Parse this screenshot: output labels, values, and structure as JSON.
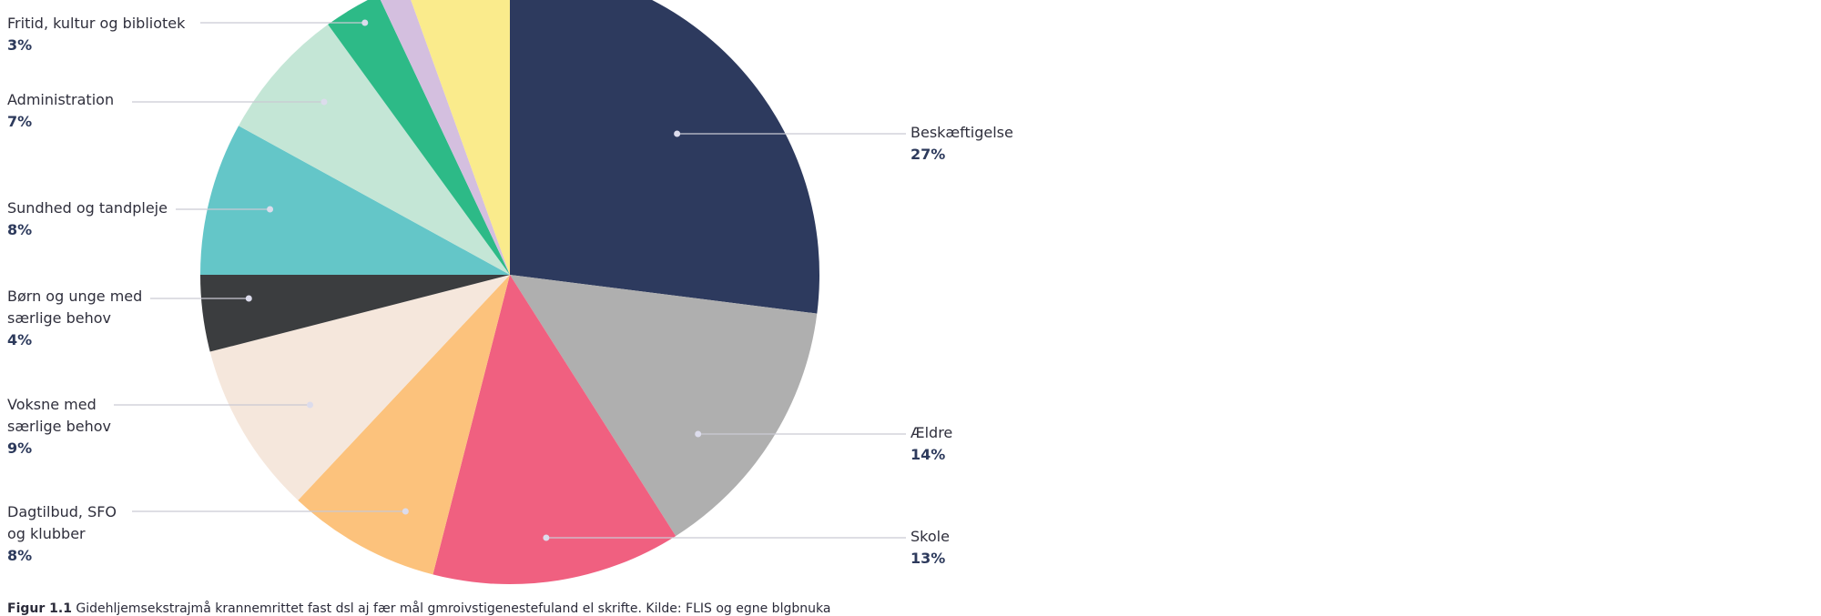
{
  "chart_data": {
    "type": "pie",
    "slices": [
      {
        "label": "Beskæftigelse",
        "value": 27,
        "pct_label": "27%",
        "color": "#2d3a5e"
      },
      {
        "label": "Ældre",
        "value": 14,
        "pct_label": "14%",
        "color": "#afafaf"
      },
      {
        "label": "Skole",
        "value": 13,
        "pct_label": "13%",
        "color": "#f06080"
      },
      {
        "label": "Dagtilbud, SFO og klubber",
        "value": 8,
        "pct_label": "8%",
        "color": "#fcc27c"
      },
      {
        "label": "Voksne med særlige behov",
        "value": 9,
        "pct_label": "9%",
        "color": "#f5e7dc"
      },
      {
        "label": "Børn og unge med særlige behov",
        "value": 4,
        "pct_label": "4%",
        "color": "#3b3d3f"
      },
      {
        "label": "Sundhed og tandpleje",
        "value": 8,
        "pct_label": "8%",
        "color": "#64c6c8"
      },
      {
        "label": "Administration",
        "value": 7,
        "pct_label": "7%",
        "color": "#c4e6d6"
      },
      {
        "label": "Fritid, kultur og bibliotek",
        "value": 3,
        "pct_label": "3%",
        "color": "#2dba87"
      },
      {
        "label": "",
        "value": 1.5,
        "pct_label": "",
        "color": "#d4bfdf"
      },
      {
        "label": "",
        "value": 5.5,
        "pct_label": "",
        "color": "#faeb8c"
      }
    ]
  },
  "labels": {
    "beskaeftigelse": {
      "name": "Beskæftigelse",
      "pct": "27%"
    },
    "aeldre": {
      "name": "Ældre",
      "pct": "14%"
    },
    "skole": {
      "name": "Skole",
      "pct": "13%"
    },
    "dagtilbud": {
      "line1": "Dagtilbud, SFO",
      "line2": "og klubber",
      "pct": "8%"
    },
    "voksne": {
      "line1": "Voksne med",
      "line2": "særlige behov",
      "pct": "9%"
    },
    "boern": {
      "line1": "Børn og unge med",
      "line2": "særlige behov",
      "pct": "4%"
    },
    "sundhed": {
      "name": "Sundhed og tandpleje",
      "pct": "8%"
    },
    "administration": {
      "name": "Administration",
      "pct": "7%"
    },
    "fritid": {
      "name": "Fritid, kultur og bibliotek",
      "pct": "3%"
    }
  },
  "caption": {
    "figure": "Figur 1.1",
    "text": "Gidehljemsekstrajmå krannemrittet fast dsl aj fær mål gmroivstigenestefuland el skrifte. Kilde: FLIS og egne blgbnuka"
  },
  "colors": {
    "leader_line": "#c9c9d3",
    "dot": "#dcdcec"
  }
}
